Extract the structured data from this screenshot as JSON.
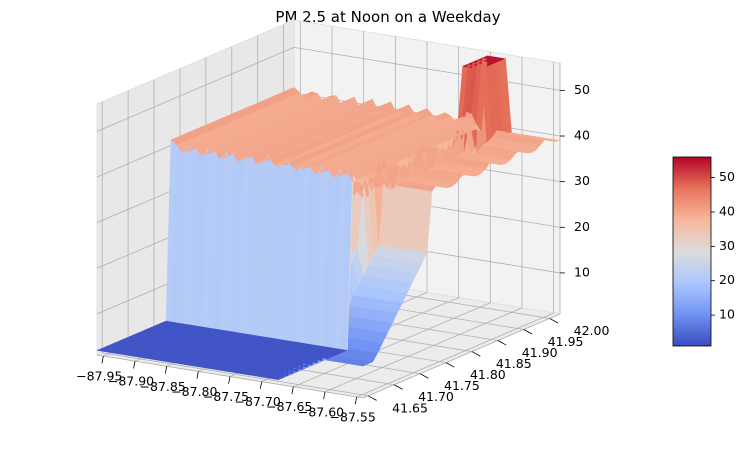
{
  "chart_data": {
    "type": "surface",
    "title": "PM 2.5 at Noon on a Weekday",
    "x_ticks": [
      "−87.95",
      "−87.90",
      "−87.85",
      "−87.80",
      "−87.75",
      "−87.70",
      "−87.65",
      "−87.60",
      "−87.55"
    ],
    "y_ticks": [
      "41.65",
      "41.70",
      "41.75",
      "41.80",
      "41.85",
      "41.90",
      "41.95",
      "42.00"
    ],
    "z_ticks": [
      "10",
      "20",
      "30",
      "40",
      "50"
    ],
    "colorbar_ticks": [
      "10",
      "20",
      "30",
      "40",
      "50"
    ],
    "xlim": [
      -87.96,
      -87.54
    ],
    "ylim": [
      41.64,
      42.02
    ],
    "zlim": [
      1,
      56
    ],
    "colormap": "coolwarm",
    "colormap_colors": [
      "#3b4cc0",
      "#7092f3",
      "#aac7fd",
      "#dddcdc",
      "#f7b89c",
      "#e7745b",
      "#b40426"
    ],
    "grid": true,
    "low_region_value": 2,
    "western_plateau_value": 40,
    "eastern_ridge_value": 41,
    "peak_value": 55
  }
}
